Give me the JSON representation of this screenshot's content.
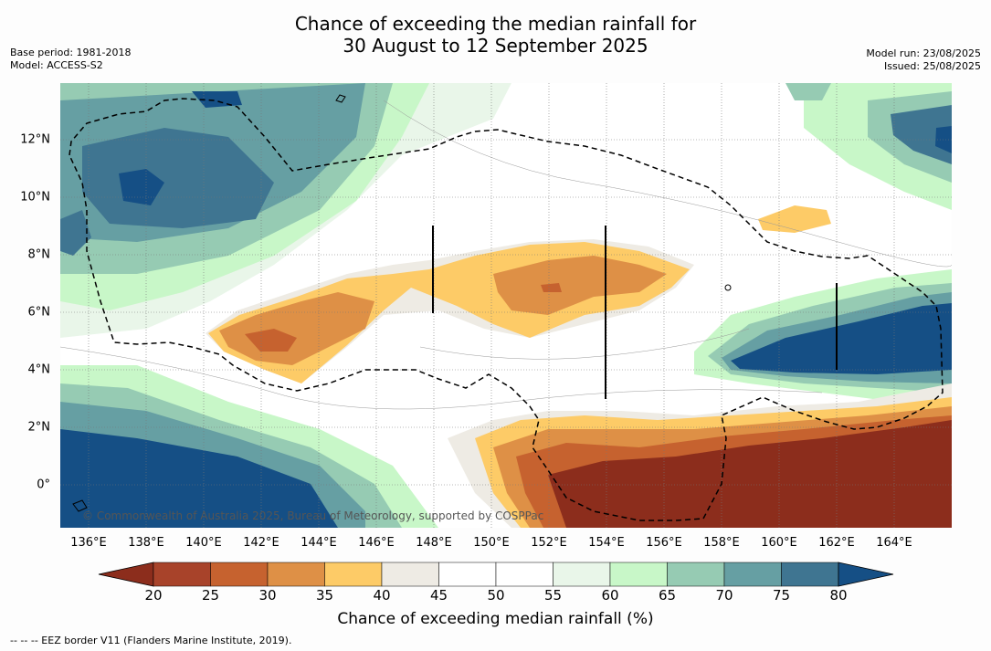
{
  "title_line1": "Chance of exceeding the median rainfall for",
  "title_line2": "30 August to 12 September 2025",
  "meta_left": [
    "Base period: 1981-2018",
    "Model: ACCESS-S2"
  ],
  "meta_right": [
    "Model run: 23/08/2025",
    "Issued: 25/08/2025"
  ],
  "x_ticks": [
    "136°E",
    "138°E",
    "140°E",
    "142°E",
    "144°E",
    "146°E",
    "148°E",
    "150°E",
    "152°E",
    "154°E",
    "156°E",
    "158°E",
    "160°E",
    "162°E",
    "164°E"
  ],
  "y_ticks": [
    "12°N",
    "10°N",
    "8°N",
    "6°N",
    "4°N",
    "2°N",
    "0°"
  ],
  "colorbar": {
    "labels": [
      "20",
      "25",
      "30",
      "35",
      "40",
      "45",
      "50",
      "55",
      "60",
      "65",
      "70",
      "75",
      "80"
    ],
    "colors": [
      "#8c2d1c",
      "#a8432a",
      "#c6622f",
      "#de9046",
      "#fdcb67",
      "#eeebe4",
      "#ffffff",
      "#ffffff",
      "#e9f6e9",
      "#c8f7c8",
      "#96cbb3",
      "#669fa3",
      "#3f7591",
      "#154f85"
    ],
    "title": "Chance of exceeding median rainfall (%)"
  },
  "copyright": "© Commonwealth of Australia 2025, Bureau of Meteorology, supported by COSPPac",
  "footnote": "--  --  -- EEZ border V11 (Flanders Marine Institute, 2019)."
}
